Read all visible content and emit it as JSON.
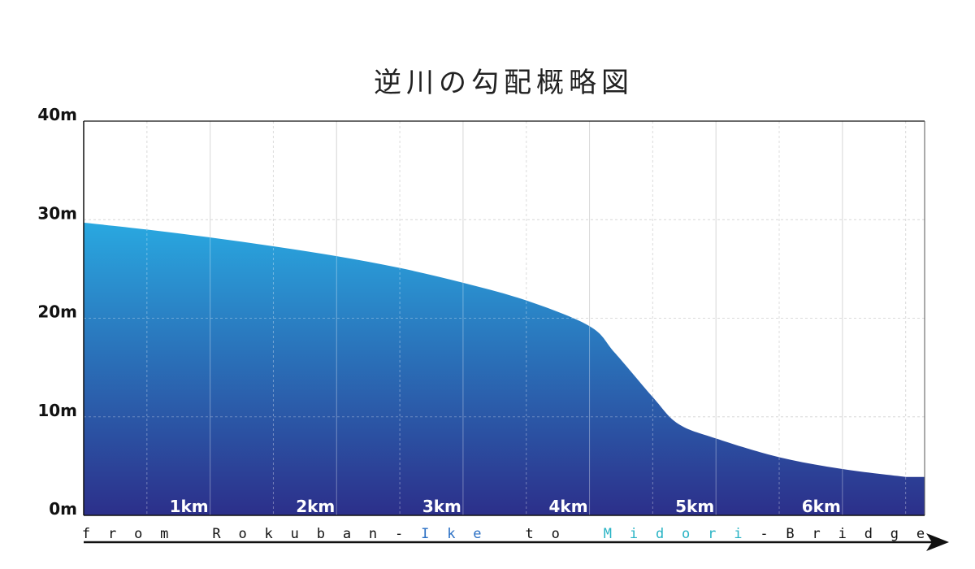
{
  "chart_data": {
    "type": "area",
    "title": "逆川の勾配概略図",
    "x": [
      0,
      0.5,
      1,
      1.5,
      2,
      2.5,
      3,
      3.5,
      4,
      4.2,
      4.5,
      4.7,
      5,
      5.5,
      6,
      6.5
    ],
    "values": [
      29.7,
      29.0,
      28.2,
      27.3,
      26.3,
      25.1,
      23.6,
      21.8,
      19.2,
      16.5,
      12.0,
      9.3,
      7.8,
      5.9,
      4.7,
      3.9
    ],
    "xlim": [
      0,
      6.65
    ],
    "ylim": [
      0,
      40
    ],
    "x_ticks": [
      {
        "value": 1,
        "label": "1km"
      },
      {
        "value": 2,
        "label": "2km"
      },
      {
        "value": 3,
        "label": "3km"
      },
      {
        "value": 4,
        "label": "4km"
      },
      {
        "value": 5,
        "label": "5km"
      },
      {
        "value": 6,
        "label": "6km"
      }
    ],
    "y_ticks": [
      {
        "value": 0,
        "label": "0m"
      },
      {
        "value": 10,
        "label": "10m"
      },
      {
        "value": 20,
        "label": "20m"
      },
      {
        "value": 30,
        "label": "30m"
      },
      {
        "value": 40,
        "label": "40m"
      }
    ],
    "grid": true,
    "xlabel": "",
    "ylabel": ""
  },
  "caption": {
    "parts": [
      {
        "text": "from Rokuban-",
        "color": "#111111"
      },
      {
        "text": "Ike",
        "color": "#2a6fc4"
      },
      {
        "text": " to ",
        "color": "#111111"
      },
      {
        "text": "Midori",
        "color": "#27b3c4"
      },
      {
        "text": "-Bridge",
        "color": "#111111"
      }
    ]
  },
  "colors": {
    "fill_top": "#29a8e0",
    "fill_bottom": "#2c2f8a",
    "grid_solid": "#c8c8c8",
    "grid_dashed": "#cccccc",
    "axis": "#111111"
  }
}
